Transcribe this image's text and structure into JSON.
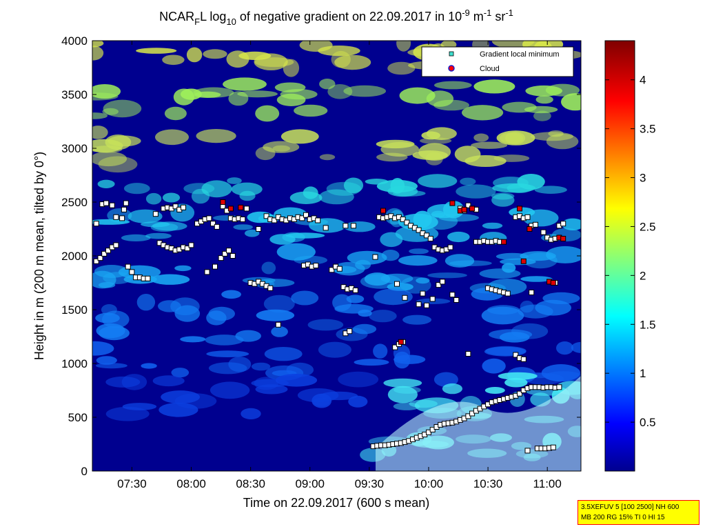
{
  "chart_data": {
    "type": "heatmap",
    "title": {
      "p1": "NCAR",
      "sub1": "F",
      "p2": "L log",
      "sub2": "10",
      "p3": " of negative gradient on 22.09.2017 in 10",
      "sup1": "-9",
      "p4": " m",
      "sup2": "-1",
      "p5": " sr",
      "sup3": "-1"
    },
    "xlabel": "Time on 22.09.2017 (600 s mean)",
    "ylabel": "Height in m (200 m mean, tilted by 0°)",
    "xlim": [
      "07:10",
      "11:17"
    ],
    "ylim": [
      0,
      4000
    ],
    "x_ticks": [
      "07:30",
      "08:00",
      "08:30",
      "09:00",
      "09:30",
      "10:00",
      "10:30",
      "11:00"
    ],
    "y_ticks": [
      0,
      500,
      1000,
      1500,
      2000,
      2500,
      3000,
      3500,
      4000
    ],
    "colorbar": {
      "colormap": "jet",
      "range": [
        0,
        4.4
      ],
      "ticks": [
        0.5,
        1,
        1.5,
        2,
        2.5,
        3,
        3.5,
        4
      ]
    },
    "legend": {
      "placement": "top-right",
      "entries": [
        {
          "name": "Gradient local minimum",
          "marker": "square",
          "color": "#40e0d0"
        },
        {
          "name": "Cloud",
          "marker": "circle",
          "color": "#ff0000"
        }
      ]
    },
    "gradient_minima": [
      {
        "t": "07:12",
        "h": 2300
      },
      {
        "t": "07:15",
        "h": 2480
      },
      {
        "t": "07:17",
        "h": 2490
      },
      {
        "t": "07:20",
        "h": 2470
      },
      {
        "t": "07:22",
        "h": 2360
      },
      {
        "t": "07:26",
        "h": 2430
      },
      {
        "t": "07:27",
        "h": 2490
      },
      {
        "t": "07:25",
        "h": 2350
      },
      {
        "t": "07:12",
        "h": 1950
      },
      {
        "t": "07:14",
        "h": 1980
      },
      {
        "t": "07:16",
        "h": 2020
      },
      {
        "t": "07:18",
        "h": 2050
      },
      {
        "t": "07:20",
        "h": 2080
      },
      {
        "t": "07:22",
        "h": 2100
      },
      {
        "t": "07:28",
        "h": 1900
      },
      {
        "t": "07:30",
        "h": 1850
      },
      {
        "t": "07:32",
        "h": 1800
      },
      {
        "t": "07:34",
        "h": 1800
      },
      {
        "t": "07:36",
        "h": 1790
      },
      {
        "t": "07:38",
        "h": 1790
      },
      {
        "t": "07:42",
        "h": 2390
      },
      {
        "t": "07:46",
        "h": 2440
      },
      {
        "t": "07:48",
        "h": 2450
      },
      {
        "t": "07:50",
        "h": 2440
      },
      {
        "t": "07:52",
        "h": 2460
      },
      {
        "t": "07:54",
        "h": 2430
      },
      {
        "t": "07:56",
        "h": 2450
      },
      {
        "t": "07:44",
        "h": 2120
      },
      {
        "t": "07:46",
        "h": 2100
      },
      {
        "t": "07:48",
        "h": 2080
      },
      {
        "t": "07:50",
        "h": 2070
      },
      {
        "t": "07:52",
        "h": 2050
      },
      {
        "t": "07:54",
        "h": 2060
      },
      {
        "t": "07:56",
        "h": 2080
      },
      {
        "t": "07:58",
        "h": 2070
      },
      {
        "t": "08:00",
        "h": 2100
      },
      {
        "t": "08:03",
        "h": 2300
      },
      {
        "t": "08:05",
        "h": 2320
      },
      {
        "t": "08:07",
        "h": 2340
      },
      {
        "t": "08:09",
        "h": 2350
      },
      {
        "t": "08:11",
        "h": 2300
      },
      {
        "t": "08:13",
        "h": 2270
      },
      {
        "t": "08:16",
        "h": 2460
      },
      {
        "t": "08:18",
        "h": 2420
      },
      {
        "t": "08:20",
        "h": 2350
      },
      {
        "t": "08:22",
        "h": 2340
      },
      {
        "t": "08:24",
        "h": 2350
      },
      {
        "t": "08:26",
        "h": 2340
      },
      {
        "t": "08:28",
        "h": 2440
      },
      {
        "t": "08:12",
        "h": 1900
      },
      {
        "t": "08:15",
        "h": 1980
      },
      {
        "t": "08:17",
        "h": 2020
      },
      {
        "t": "08:19",
        "h": 2050
      },
      {
        "t": "08:21",
        "h": 2000
      },
      {
        "t": "08:08",
        "h": 1850
      },
      {
        "t": "08:30",
        "h": 1750
      },
      {
        "t": "08:32",
        "h": 1740
      },
      {
        "t": "08:34",
        "h": 1760
      },
      {
        "t": "08:36",
        "h": 1740
      },
      {
        "t": "08:38",
        "h": 1720
      },
      {
        "t": "08:40",
        "h": 1700
      },
      {
        "t": "08:34",
        "h": 2250
      },
      {
        "t": "08:38",
        "h": 2370
      },
      {
        "t": "08:40",
        "h": 2340
      },
      {
        "t": "08:42",
        "h": 2330
      },
      {
        "t": "08:44",
        "h": 2360
      },
      {
        "t": "08:46",
        "h": 2340
      },
      {
        "t": "08:48",
        "h": 2330
      },
      {
        "t": "08:50",
        "h": 2350
      },
      {
        "t": "08:52",
        "h": 2340
      },
      {
        "t": "08:54",
        "h": 2360
      },
      {
        "t": "08:56",
        "h": 2350
      },
      {
        "t": "08:58",
        "h": 2380
      },
      {
        "t": "09:00",
        "h": 2340
      },
      {
        "t": "09:02",
        "h": 2350
      },
      {
        "t": "09:04",
        "h": 2330
      },
      {
        "t": "08:44",
        "h": 1360
      },
      {
        "t": "08:57",
        "h": 1910
      },
      {
        "t": "08:59",
        "h": 1920
      },
      {
        "t": "09:01",
        "h": 1900
      },
      {
        "t": "09:03",
        "h": 1910
      },
      {
        "t": "09:08",
        "h": 2260
      },
      {
        "t": "09:11",
        "h": 1870
      },
      {
        "t": "09:13",
        "h": 1900
      },
      {
        "t": "09:15",
        "h": 1880
      },
      {
        "t": "09:17",
        "h": 1710
      },
      {
        "t": "09:19",
        "h": 1690
      },
      {
        "t": "09:21",
        "h": 1700
      },
      {
        "t": "09:23",
        "h": 1680
      },
      {
        "t": "09:18",
        "h": 2280
      },
      {
        "t": "09:22",
        "h": 2280
      },
      {
        "t": "09:18",
        "h": 1280
      },
      {
        "t": "09:20",
        "h": 1300
      },
      {
        "t": "09:33",
        "h": 1990
      },
      {
        "t": "09:35",
        "h": 2360
      },
      {
        "t": "09:37",
        "h": 2350
      },
      {
        "t": "09:39",
        "h": 2360
      },
      {
        "t": "09:41",
        "h": 2370
      },
      {
        "t": "09:43",
        "h": 2350
      },
      {
        "t": "09:45",
        "h": 2360
      },
      {
        "t": "09:47",
        "h": 2340
      },
      {
        "t": "09:49",
        "h": 2310
      },
      {
        "t": "09:51",
        "h": 2280
      },
      {
        "t": "09:53",
        "h": 2260
      },
      {
        "t": "09:55",
        "h": 2240
      },
      {
        "t": "09:57",
        "h": 2210
      },
      {
        "t": "09:59",
        "h": 2190
      },
      {
        "t": "10:01",
        "h": 2160
      },
      {
        "t": "10:03",
        "h": 2080
      },
      {
        "t": "10:05",
        "h": 2060
      },
      {
        "t": "10:07",
        "h": 2050
      },
      {
        "t": "10:09",
        "h": 2060
      },
      {
        "t": "10:11",
        "h": 2080
      },
      {
        "t": "09:43",
        "h": 1150
      },
      {
        "t": "09:45",
        "h": 1180
      },
      {
        "t": "09:47",
        "h": 1200
      },
      {
        "t": "09:44",
        "h": 1740
      },
      {
        "t": "09:48",
        "h": 1610
      },
      {
        "t": "09:55",
        "h": 1550
      },
      {
        "t": "09:57",
        "h": 1650
      },
      {
        "t": "09:59",
        "h": 1540
      },
      {
        "t": "10:02",
        "h": 1600
      },
      {
        "t": "10:05",
        "h": 1730
      },
      {
        "t": "10:07",
        "h": 1760
      },
      {
        "t": "10:12",
        "h": 1640
      },
      {
        "t": "10:14",
        "h": 1590
      },
      {
        "t": "10:16",
        "h": 2440
      },
      {
        "t": "10:18",
        "h": 2420
      },
      {
        "t": "10:20",
        "h": 2470
      },
      {
        "t": "10:22",
        "h": 2440
      },
      {
        "t": "10:24",
        "h": 2430
      },
      {
        "t": "10:20",
        "h": 1090
      },
      {
        "t": "10:24",
        "h": 2130
      },
      {
        "t": "10:26",
        "h": 2130
      },
      {
        "t": "10:28",
        "h": 2140
      },
      {
        "t": "10:30",
        "h": 2130
      },
      {
        "t": "10:32",
        "h": 2130
      },
      {
        "t": "10:34",
        "h": 2140
      },
      {
        "t": "10:36",
        "h": 2130
      },
      {
        "t": "10:30",
        "h": 1700
      },
      {
        "t": "10:32",
        "h": 1690
      },
      {
        "t": "10:34",
        "h": 1680
      },
      {
        "t": "10:36",
        "h": 1670
      },
      {
        "t": "10:38",
        "h": 1660
      },
      {
        "t": "10:40",
        "h": 1650
      },
      {
        "t": "10:44",
        "h": 2360
      },
      {
        "t": "10:46",
        "h": 2370
      },
      {
        "t": "10:48",
        "h": 2350
      },
      {
        "t": "10:50",
        "h": 2360
      },
      {
        "t": "10:52",
        "h": 2280
      },
      {
        "t": "10:54",
        "h": 2290
      },
      {
        "t": "10:44",
        "h": 1080
      },
      {
        "t": "10:46",
        "h": 1050
      },
      {
        "t": "10:48",
        "h": 1040
      },
      {
        "t": "10:52",
        "h": 1660
      },
      {
        "t": "10:58",
        "h": 2220
      },
      {
        "t": "11:00",
        "h": 2170
      },
      {
        "t": "11:02",
        "h": 2150
      },
      {
        "t": "11:04",
        "h": 2160
      },
      {
        "t": "11:04",
        "h": 1750
      },
      {
        "t": "11:06",
        "h": 2280
      },
      {
        "t": "11:08",
        "h": 2300
      },
      {
        "t": "10:50",
        "h": 190
      },
      {
        "t": "10:55",
        "h": 210
      },
      {
        "t": "10:57",
        "h": 210
      },
      {
        "t": "10:59",
        "h": 210
      },
      {
        "t": "11:01",
        "h": 215
      },
      {
        "t": "11:03",
        "h": 220
      },
      {
        "t": "09:32",
        "h": 230
      },
      {
        "t": "09:34",
        "h": 235
      },
      {
        "t": "09:36",
        "h": 240
      },
      {
        "t": "09:38",
        "h": 240
      },
      {
        "t": "09:40",
        "h": 245
      },
      {
        "t": "09:42",
        "h": 250
      },
      {
        "t": "09:44",
        "h": 255
      },
      {
        "t": "09:46",
        "h": 260
      },
      {
        "t": "09:48",
        "h": 270
      },
      {
        "t": "09:50",
        "h": 280
      },
      {
        "t": "09:52",
        "h": 295
      },
      {
        "t": "09:54",
        "h": 310
      },
      {
        "t": "09:56",
        "h": 325
      },
      {
        "t": "09:58",
        "h": 340
      },
      {
        "t": "10:00",
        "h": 360
      },
      {
        "t": "10:02",
        "h": 385
      },
      {
        "t": "10:04",
        "h": 410
      },
      {
        "t": "10:06",
        "h": 430
      },
      {
        "t": "10:08",
        "h": 440
      },
      {
        "t": "10:10",
        "h": 445
      },
      {
        "t": "10:12",
        "h": 450
      },
      {
        "t": "10:14",
        "h": 460
      },
      {
        "t": "10:16",
        "h": 475
      },
      {
        "t": "10:18",
        "h": 490
      },
      {
        "t": "10:20",
        "h": 510
      },
      {
        "t": "10:22",
        "h": 535
      },
      {
        "t": "10:24",
        "h": 560
      },
      {
        "t": "10:26",
        "h": 580
      },
      {
        "t": "10:28",
        "h": 600
      },
      {
        "t": "10:30",
        "h": 620
      },
      {
        "t": "10:32",
        "h": 640
      },
      {
        "t": "10:34",
        "h": 650
      },
      {
        "t": "10:36",
        "h": 660
      },
      {
        "t": "10:38",
        "h": 670
      },
      {
        "t": "10:40",
        "h": 680
      },
      {
        "t": "10:42",
        "h": 690
      },
      {
        "t": "10:44",
        "h": 700
      },
      {
        "t": "10:46",
        "h": 720
      },
      {
        "t": "10:48",
        "h": 750
      },
      {
        "t": "10:50",
        "h": 770
      },
      {
        "t": "10:52",
        "h": 780
      },
      {
        "t": "10:54",
        "h": 780
      },
      {
        "t": "10:56",
        "h": 780
      },
      {
        "t": "10:58",
        "h": 775
      },
      {
        "t": "11:00",
        "h": 780
      },
      {
        "t": "11:02",
        "h": 780
      },
      {
        "t": "11:04",
        "h": 775
      },
      {
        "t": "11:06",
        "h": 780
      }
    ],
    "cloud_points": [
      {
        "t": "08:16",
        "h": 2500
      },
      {
        "t": "08:20",
        "h": 2440
      },
      {
        "t": "08:25",
        "h": 2450
      },
      {
        "t": "09:37",
        "h": 2420
      },
      {
        "t": "09:46",
        "h": 1200
      },
      {
        "t": "10:12",
        "h": 2490
      },
      {
        "t": "10:16",
        "h": 2420
      },
      {
        "t": "10:18",
        "h": 2430
      },
      {
        "t": "10:22",
        "h": 2440
      },
      {
        "t": "10:38",
        "h": 2130
      },
      {
        "t": "10:48",
        "h": 1950
      },
      {
        "t": "10:51",
        "h": 2250
      },
      {
        "t": "11:01",
        "h": 1760
      },
      {
        "t": "11:03",
        "h": 1750
      },
      {
        "t": "11:06",
        "h": 2170
      },
      {
        "t": "11:08",
        "h": 2160
      },
      {
        "t": "10:46",
        "h": 2440
      }
    ]
  },
  "info_box": {
    "line1": "3.5XEFUV 5 [100 2500] NH 600",
    "line2": "MB 200 RG 15% TI 0 HI 15"
  }
}
